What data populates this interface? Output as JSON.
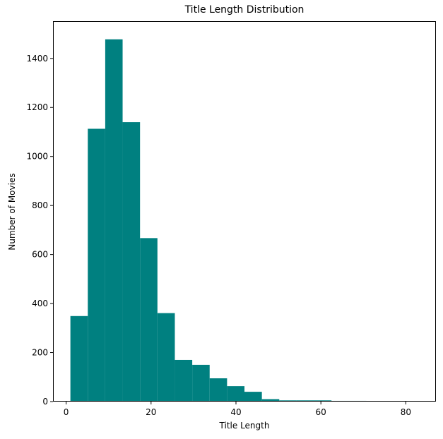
{
  "chart_data": {
    "type": "bar",
    "subtype": "histogram",
    "title": "Title Length Distribution",
    "xlabel": "Title Length",
    "ylabel": "Number of Movies",
    "bin_range": [
      1,
      83
    ],
    "bin_count": 20,
    "bin_edges": [
      1,
      5.1,
      9.2,
      13.3,
      17.4,
      21.5,
      25.6,
      29.7,
      33.8,
      37.9,
      42.0,
      46.1,
      50.2,
      54.3,
      58.4,
      62.5,
      66.6,
      70.7,
      74.8,
      78.9,
      83
    ],
    "values": [
      349,
      1113,
      1478,
      1140,
      667,
      361,
      170,
      150,
      95,
      63,
      40,
      10,
      5,
      5,
      5,
      3,
      3,
      0,
      0,
      2
    ],
    "xlim": [
      -3.1,
      87.1
    ],
    "ylim": [
      0,
      1552
    ],
    "xticks": [
      0,
      20,
      40,
      60,
      80
    ],
    "yticks": [
      0,
      200,
      400,
      600,
      800,
      1000,
      1200,
      1400
    ],
    "bar_color": "#008080",
    "grid": false,
    "legend": null
  }
}
